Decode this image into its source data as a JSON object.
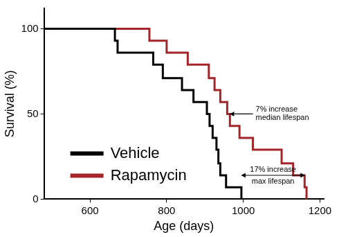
{
  "chart_data": {
    "type": "line",
    "x_label": "Age (days)",
    "y_label": "Survival (%)",
    "xlim": [
      480,
      1210
    ],
    "xticks": [
      600,
      800,
      1000,
      1200
    ],
    "ylim": [
      0,
      112
    ],
    "yticks": [
      0,
      50,
      100
    ],
    "grid": false,
    "legend": "lower left",
    "line_style": "step",
    "series": [
      {
        "name": "Vehicle",
        "color": "#000000",
        "x": [
          480,
          665,
          672,
          765,
          790,
          840,
          870,
          905,
          912,
          920,
          930,
          935,
          940,
          955,
          995
        ],
        "values": [
          100,
          93,
          86,
          79,
          71,
          64,
          57,
          50,
          43,
          36,
          29,
          21,
          14,
          7,
          0
        ]
      },
      {
        "name": "Rapamycin",
        "color": "#a3252a",
        "x": [
          480,
          755,
          800,
          855,
          910,
          925,
          940,
          958,
          965,
          990,
          1025,
          1100,
          1130,
          1160,
          1165
        ],
        "values": [
          100,
          93,
          86,
          79,
          71,
          64,
          57,
          50,
          43,
          36,
          29,
          21,
          14,
          7,
          0
        ]
      }
    ],
    "annotations": [
      {
        "text": [
          "7% increase",
          "median lifespan"
        ],
        "arrow": "single",
        "x": [
          1025,
          965
        ],
        "y": 50
      },
      {
        "text": [
          "17% increase",
          "max lifespan"
        ],
        "arrow": "double",
        "x": [
          995,
          1160
        ],
        "y": 14
      }
    ]
  }
}
